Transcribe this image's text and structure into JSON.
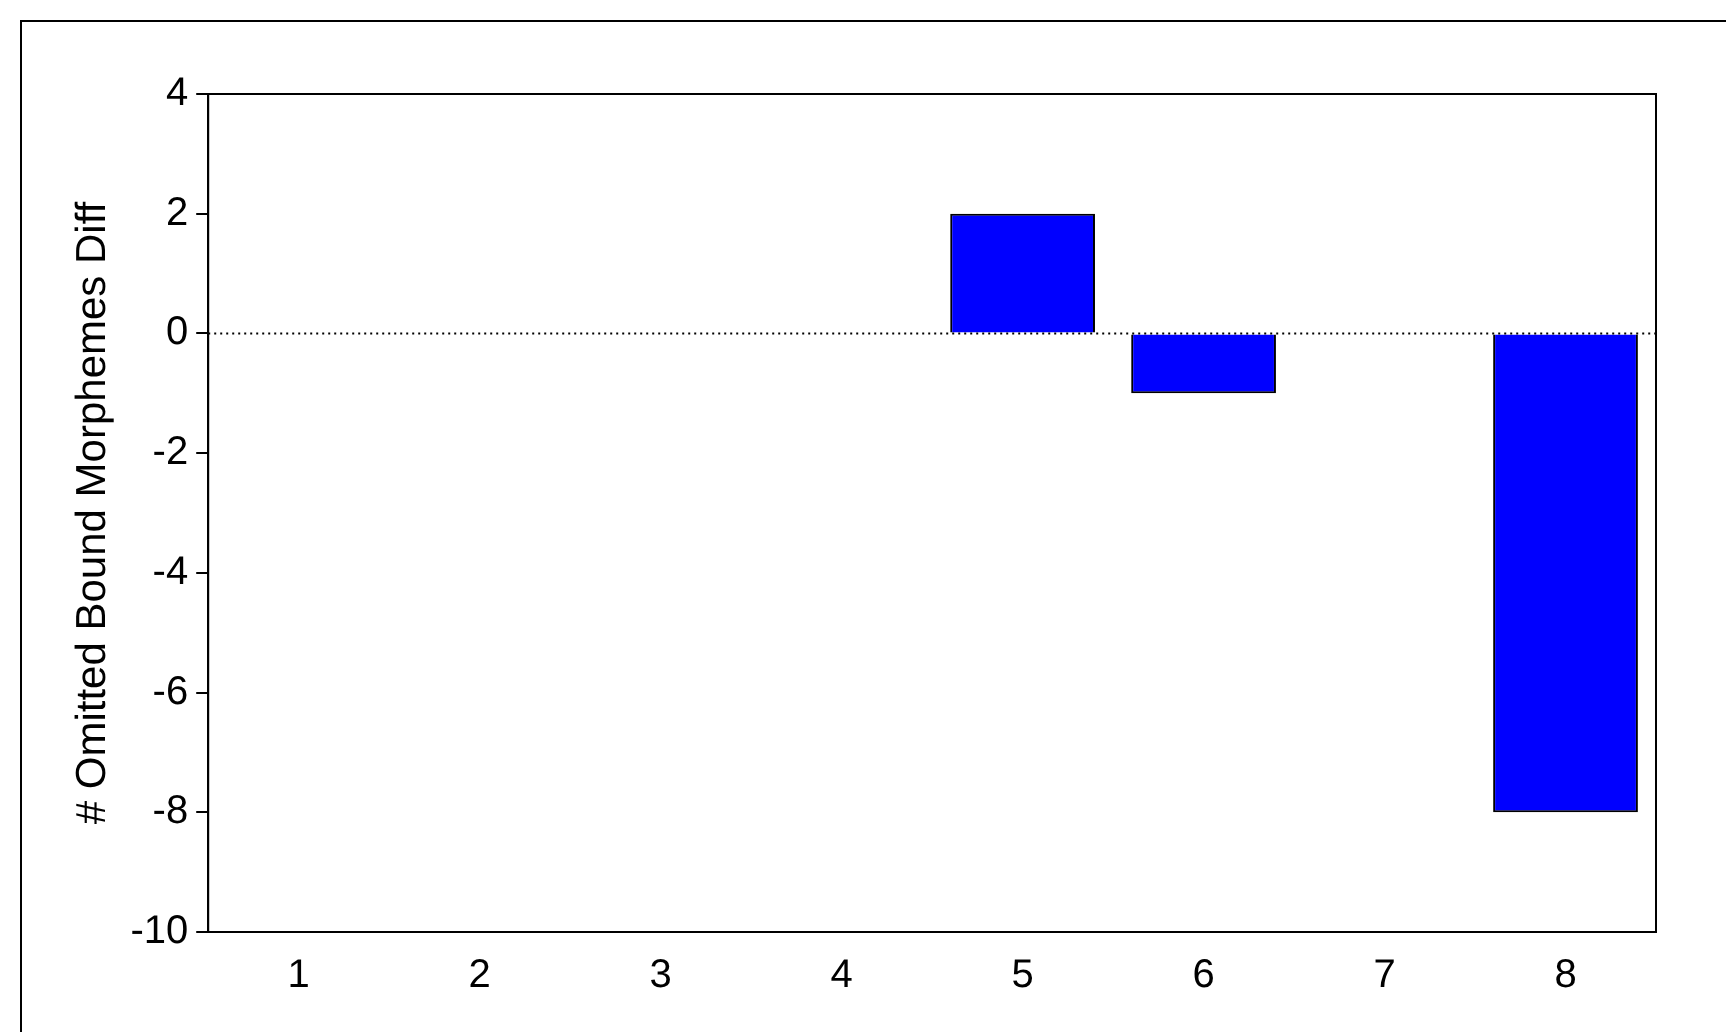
{
  "chart_data": {
    "type": "bar",
    "ylabel": "# Omitted Bound Morphemes Diff",
    "categories": [
      "1",
      "2",
      "3",
      "4",
      "5",
      "6",
      "7",
      "8"
    ],
    "values": [
      0,
      0,
      0,
      0,
      2,
      -1,
      0,
      -8
    ],
    "color": "#0000ff",
    "ylim": [
      -10,
      4
    ],
    "yticks": [
      -10,
      -8,
      -6,
      -4,
      -2,
      0,
      2,
      4
    ],
    "grid": false,
    "legend": false,
    "ref_lines": [
      {
        "axis": "y",
        "value": 0,
        "line_style": "dotted",
        "color": "#000000"
      }
    ]
  }
}
